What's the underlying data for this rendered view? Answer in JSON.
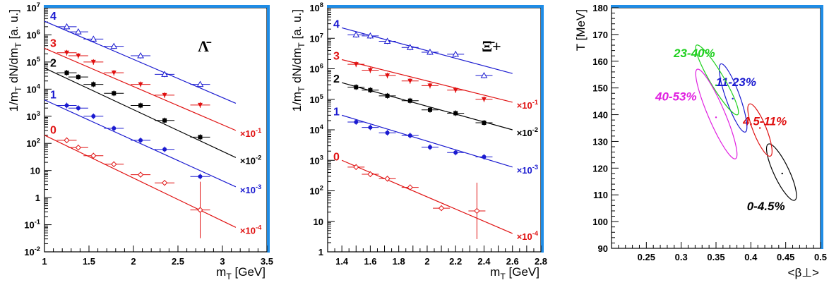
{
  "chart_data": [
    {
      "type": "scatter",
      "particle_label": "Λ̄",
      "xlabel": "m_T  [GeV]",
      "ylabel": "1/m_T dN/dm_T  [a. u.]",
      "xlim": [
        1,
        3.5
      ],
      "ylim_log10": [
        -2,
        7
      ],
      "y_scale": "log",
      "x_ticks": [
        "1",
        "1.5",
        "2",
        "2.5",
        "3",
        "3.5"
      ],
      "y_ticks": [
        "10^-2",
        "10^-1",
        "1",
        "10",
        "10^2",
        "10^3",
        "10^4",
        "10^5",
        "10^6",
        "10^7"
      ],
      "series": [
        {
          "label": "4",
          "color": "#1a1ad0",
          "marker": "open-triangle",
          "scale_label": "",
          "x": [
            1.25,
            1.38,
            1.55,
            1.78,
            2.08,
            2.35,
            2.75
          ],
          "y": [
            2000000.0,
            1300000.0,
            700000.0,
            380000.0,
            170000.0,
            35000.0,
            15000.0
          ],
          "fit_x": [
            1.0,
            3.15
          ],
          "fit_y": [
            3200000.0,
            3000.0
          ]
        },
        {
          "label": "3",
          "color": "#e01010",
          "marker": "down-triangle",
          "scale_label": "×10^-1",
          "x": [
            1.25,
            1.38,
            1.55,
            1.78,
            2.08,
            2.35,
            2.75
          ],
          "y": [
            220000.0,
            170000.0,
            100000.0,
            40000.0,
            15000.0,
            6000.0,
            2600.0
          ],
          "fit_x": [
            1.0,
            3.15
          ],
          "fit_y": [
            320000.0,
            300.0
          ]
        },
        {
          "label": "2",
          "color": "#000000",
          "marker": "square",
          "scale_label": "×10^-2",
          "x": [
            1.25,
            1.38,
            1.55,
            1.78,
            2.08,
            2.35,
            2.75
          ],
          "y": [
            40000.0,
            28000.0,
            15000.0,
            7000.0,
            2500.0,
            700.0,
            170.0
          ],
          "fit_x": [
            1.0,
            3.15
          ],
          "fit_y": [
            60000.0,
            30.0
          ]
        },
        {
          "label": "1",
          "color": "#1a1ad0",
          "marker": "circle",
          "scale_label": "×10^-3",
          "x": [
            1.25,
            1.38,
            1.55,
            1.78,
            2.08,
            2.35,
            2.75
          ],
          "y": [
            2500.0,
            2000.0,
            1000.0,
            360.0,
            130.0,
            60.0,
            6.0
          ],
          "fit_x": [
            1.0,
            3.15
          ],
          "fit_y": [
            4000.0,
            2.5
          ]
        },
        {
          "label": "0",
          "color": "#e01010",
          "marker": "open-diamond",
          "scale_label": "×10^-4",
          "x": [
            1.25,
            1.38,
            1.55,
            1.78,
            2.08,
            2.35,
            2.75
          ],
          "y": [
            130.0,
            70.0,
            35.0,
            17.0,
            7.0,
            3.5,
            0.35
          ],
          "fit_x": [
            1.0,
            3.15
          ],
          "fit_y": [
            200.0,
            0.08
          ]
        }
      ]
    },
    {
      "type": "scatter",
      "particle_label": "Ξ̄+",
      "xlabel": "m_T  [GeV]",
      "ylabel": "1/m_T dN/dm_T  [a. u.]",
      "xlim": [
        1.3,
        2.8
      ],
      "ylim_log10": [
        0,
        8
      ],
      "y_scale": "log",
      "x_ticks": [
        "1.4",
        "1.6",
        "1.8",
        "2",
        "2.2",
        "2.4",
        "2.6",
        "2.8"
      ],
      "y_ticks": [
        "1",
        "10",
        "10^2",
        "10^3",
        "10^4",
        "10^5",
        "10^6",
        "10^7",
        "10^8"
      ],
      "series": [
        {
          "label": "4",
          "color": "#1a1ad0",
          "marker": "open-triangle",
          "scale_label": "",
          "x": [
            1.5,
            1.6,
            1.72,
            1.88,
            2.02,
            2.2,
            2.4
          ],
          "y": [
            13000000.0,
            12000000.0,
            8000000.0,
            5000000.0,
            3500000.0,
            3000000.0,
            600000.0
          ],
          "fit_x": [
            1.4,
            2.6
          ],
          "fit_y": [
            22000000.0,
            700000.0
          ]
        },
        {
          "label": "3",
          "color": "#e01010",
          "marker": "down-triangle",
          "scale_label": "×10^-1",
          "x": [
            1.5,
            1.6,
            1.72,
            1.88,
            2.02,
            2.2,
            2.4
          ],
          "y": [
            1400000.0,
            900000.0,
            600000.0,
            400000.0,
            280000.0,
            200000.0,
            100000.0
          ],
          "fit_x": [
            1.4,
            2.6
          ],
          "fit_y": [
            2000000.0,
            80000.0
          ]
        },
        {
          "label": "2",
          "color": "#000000",
          "marker": "square",
          "scale_label": "×10^-2",
          "x": [
            1.5,
            1.6,
            1.72,
            1.88,
            2.02,
            2.2,
            2.4
          ],
          "y": [
            250000.0,
            200000.0,
            130000.0,
            90000.0,
            45000.0,
            35000.0,
            17000.0
          ],
          "fit_x": [
            1.4,
            2.6
          ],
          "fit_y": [
            350000.0,
            10000.0
          ]
        },
        {
          "label": "1",
          "color": "#1a1ad0",
          "marker": "circle",
          "scale_label": "×10^-3",
          "x": [
            1.5,
            1.6,
            1.72,
            1.88,
            2.02,
            2.2,
            2.4
          ],
          "y": [
            18000.0,
            12000.0,
            8000.0,
            6500.0,
            2700.0,
            1800.0,
            1300.0
          ],
          "fit_x": [
            1.4,
            2.6
          ],
          "fit_y": [
            30000.0,
            600.0
          ]
        },
        {
          "label": "0",
          "color": "#e01010",
          "marker": "open-diamond",
          "scale_label": "×10^-4",
          "x": [
            1.5,
            1.6,
            1.72,
            1.88,
            2.1,
            2.35
          ],
          "y": [
            600.0,
            350.0,
            250.0,
            130.0,
            27.0,
            22.0
          ],
          "fit_x": [
            1.4,
            2.6
          ],
          "fit_y": [
            1000.0,
            4.0
          ]
        }
      ]
    },
    {
      "type": "contour",
      "xlabel": "<β⊥>",
      "ylabel": "T  [MeV]",
      "xlim": [
        0.2,
        0.5
      ],
      "ylim": [
        90,
        180
      ],
      "x_ticks": [
        "0.25",
        "0.3",
        "0.35",
        "0.4",
        "0.45",
        "0.5"
      ],
      "y_ticks": [
        "90",
        "100",
        "110",
        "120",
        "130",
        "140",
        "150",
        "160",
        "170",
        "180"
      ],
      "series": [
        {
          "name": "0-4.5%",
          "color": "#000000",
          "center": [
            0.445,
            118
          ],
          "end_a": [
            0.425,
            129
          ],
          "end_b": [
            0.463,
            108
          ],
          "half_width": 0.011
        },
        {
          "name": "4.5-11%",
          "color": "#e01010",
          "center": [
            0.413,
            135
          ],
          "end_a": [
            0.398,
            144
          ],
          "end_b": [
            0.428,
            124.5
          ],
          "half_width": 0.0095
        },
        {
          "name": "11-23%",
          "color": "#1a1ad0",
          "center": [
            0.374,
            146
          ],
          "end_a": [
            0.357,
            159
          ],
          "end_b": [
            0.392,
            133.5
          ],
          "half_width": 0.01
        },
        {
          "name": "23-40%",
          "color": "#20d020",
          "center": [
            0.35,
            151
          ],
          "end_a": [
            0.322,
            166
          ],
          "end_b": [
            0.381,
            140
          ],
          "half_width": 0.01
        },
        {
          "name": "40-53%",
          "color": "#e020e0",
          "center": [
            0.35,
            139
          ],
          "end_a": [
            0.323,
            157
          ],
          "end_b": [
            0.378,
            123.5
          ],
          "half_width": 0.012
        }
      ]
    }
  ]
}
